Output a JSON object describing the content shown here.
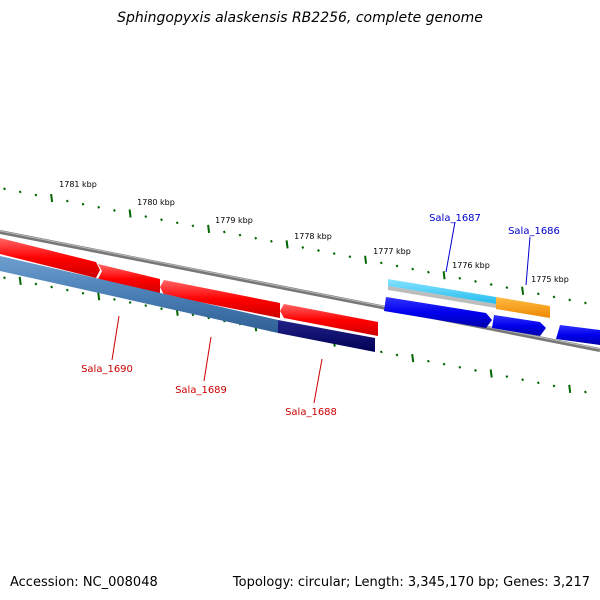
{
  "title": "Sphingopyxis alaskensis RB2256, complete genome",
  "footer": {
    "accession": "Accession: NC_008048",
    "summary": "Topology: circular; Length: 3,345,170 bp; Genes: 3,217"
  },
  "kbp_ticks": [
    "1781 kbp",
    "1780 kbp",
    "1779 kbp",
    "1778 kbp",
    "1777 kbp",
    "1776 kbp",
    "1775 kbp"
  ],
  "genes": [
    {
      "name": "Sala_1690",
      "color": "#cc0000"
    },
    {
      "name": "Sala_1689",
      "color": "#cc0000"
    },
    {
      "name": "Sala_1688",
      "color": "#cc0000"
    },
    {
      "name": "Sala_1687",
      "color": "#0000cc"
    },
    {
      "name": "Sala_1686",
      "color": "#0000cc"
    }
  ],
  "colors": {
    "forward_cds": "#ff0000",
    "reverse_cds": "#0000ee",
    "steelblue_feature": "#4a7fb5",
    "navy_feature": "#000066",
    "cyan_feature": "#33ccee",
    "orange_feature": "#ff9900",
    "backbone": "#777777",
    "tick": "#006600"
  }
}
